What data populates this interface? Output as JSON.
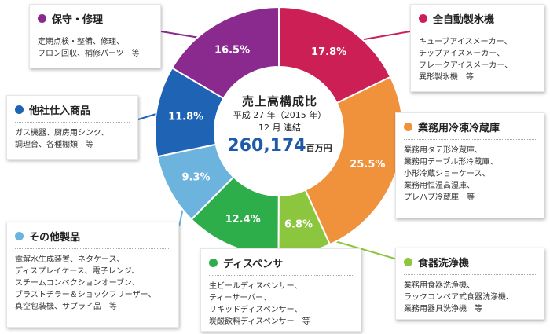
{
  "chart_data": {
    "type": "pie",
    "title": "売上高構成比",
    "subtitle_1": "平成 27 年（2015 年）",
    "subtitle_2": "12 月 連結",
    "total_value": "260,174",
    "total_unit": "百万円",
    "slices": [
      {
        "label": "全自動製氷機",
        "value": 17.8,
        "value_label": "17.8%",
        "color": "#cc1f55",
        "items": [
          "キューブアイスメーカー、",
          "チップアイスメーカー、",
          "フレークアイスメーカー、",
          "異形製氷機　等"
        ]
      },
      {
        "label": "業務用冷凍冷蔵庫",
        "value": 25.5,
        "value_label": "25.5%",
        "color": "#f0913c",
        "items": [
          "業務用タテ形冷蔵庫、",
          "業務用テーブル形冷蔵庫、",
          "小形冷蔵ショーケース、",
          "業務用恒温高湿庫、",
          "プレハブ冷蔵庫　等"
        ]
      },
      {
        "label": "食器洗浄機",
        "value": 6.8,
        "value_label": "6.8%",
        "color": "#8cc63f",
        "items": [
          "業務用食器洗浄機、",
          "ラックコンベア式食器洗浄機、",
          "業務用器具洗浄機　等"
        ]
      },
      {
        "label": "ディスペンサ",
        "value": 12.4,
        "value_label": "12.4%",
        "color": "#2eae4a",
        "items": [
          "生ビールディスペンサー、",
          "ティーサーバー、",
          "リキッドディスペンサー、",
          "炭酸飲料ディスペンサー　等"
        ]
      },
      {
        "label": "その他製品",
        "value": 9.3,
        "value_label": "9.3%",
        "color": "#6cb4de",
        "items": [
          "電解水生成装置、ネタケース、",
          "ディスプレイケース、電子レンジ、",
          "スチームコンベクションオーブン、",
          "ブラストチラー＆ショックフリーザー、",
          "真空包装機、サプライ品　等"
        ]
      },
      {
        "label": "他社仕入商品",
        "value": 11.8,
        "value_label": "11.8%",
        "color": "#1e63b4",
        "items": [
          "ガス機器、厨房用シンク、",
          "調理台、各種棚類　等"
        ]
      },
      {
        "label": "保守・修理",
        "value": 16.5,
        "value_label": "16.5%",
        "color": "#8b2a8e",
        "items": [
          "定期点検・整備、修理、",
          "フロン回収、補修パーツ　等"
        ]
      }
    ]
  }
}
